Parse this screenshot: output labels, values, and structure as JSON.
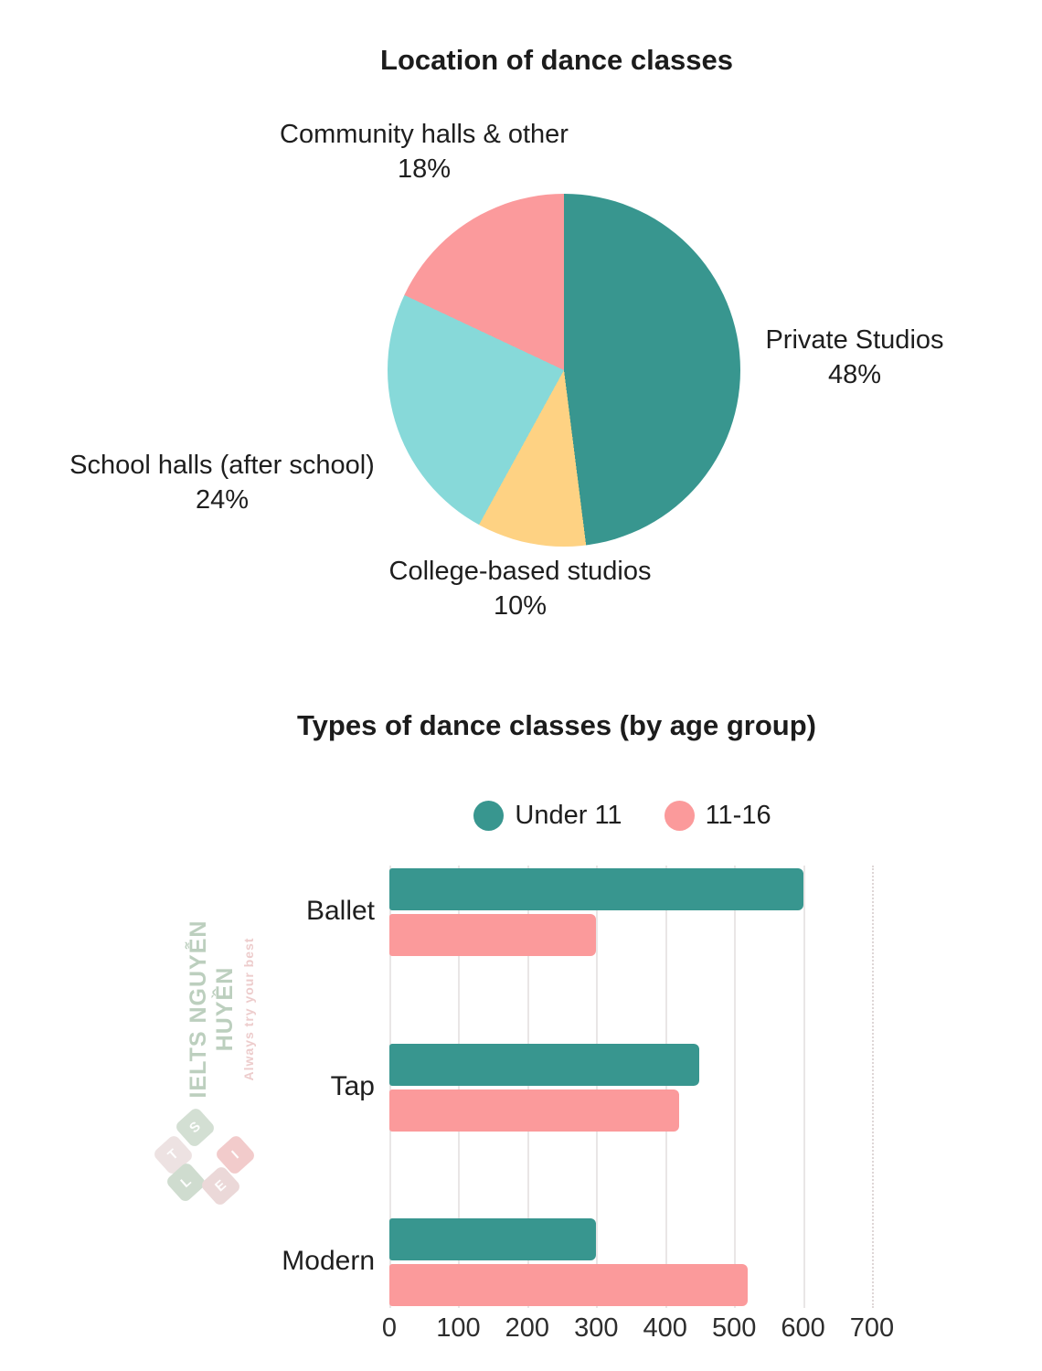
{
  "chart_data": [
    {
      "type": "pie",
      "title": "Location of dance classes",
      "unit": "percent",
      "start_angle": "12-oclock",
      "direction": "clockwise",
      "slices": [
        {
          "label": "Private Studios",
          "value": 48,
          "pct_label": "48%",
          "color": "#38968F"
        },
        {
          "label": "College-based studios",
          "value": 10,
          "pct_label": "10%",
          "color": "#FED283"
        },
        {
          "label": "School halls (after school)",
          "value": 24,
          "pct_label": "24%",
          "color": "#87D9D9"
        },
        {
          "label": "Community halls & other",
          "value": 18,
          "pct_label": "18%",
          "color": "#FB9A9C"
        }
      ]
    },
    {
      "type": "bar",
      "orientation": "horizontal",
      "title": "Types of dance classes (by age group)",
      "categories": [
        "Ballet",
        "Tap",
        "Modern"
      ],
      "series": [
        {
          "name": "Under 11",
          "color": "#38968F",
          "values": [
            600,
            450,
            300
          ]
        },
        {
          "name": "11-16",
          "color": "#FB9A9B",
          "values": [
            300,
            420,
            520
          ]
        }
      ],
      "xlim": [
        0,
        700
      ],
      "xticks": [
        "0",
        "100",
        "200",
        "300",
        "400",
        "500",
        "600",
        "700"
      ],
      "grid": "vertical-gridlines",
      "legend_position": "top-center"
    }
  ],
  "watermark": {
    "line1": "IELTS NGUYỄN HUYỀN",
    "line2": "Always try your best",
    "line1_color": "#BCCFBE",
    "line2_color": "#EDCCCC",
    "logo_tiles": [
      {
        "letter": "S",
        "color": "#D3DFD3"
      },
      {
        "letter": "T",
        "color": "#EDE2E2"
      },
      {
        "letter": "L",
        "color": "#CFDCCF"
      },
      {
        "letter": "E",
        "color": "#EBD8D8"
      },
      {
        "letter": "I",
        "color": "#F2CBCB"
      }
    ]
  },
  "styles": {
    "background": "#FFFFFF",
    "text_color": "#1E1E1E",
    "grid_color": "#E9E6E6"
  }
}
